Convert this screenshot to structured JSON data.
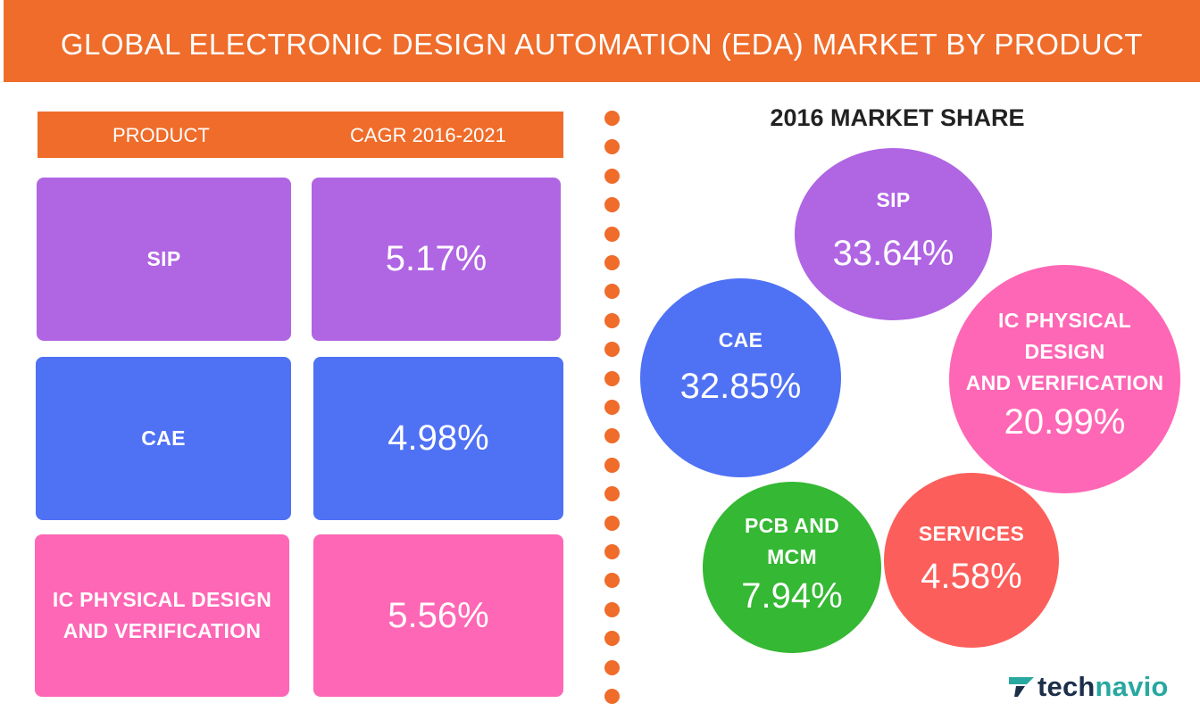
{
  "header": {
    "title": "GLOBAL ELECTRONIC DESIGN AUTOMATION (EDA) MARKET BY PRODUCT"
  },
  "table": {
    "col_product": "PRODUCT",
    "col_cagr": "CAGR 2016-2021"
  },
  "colors": {
    "orange": "#ef6c2a",
    "sip": "#b065e3",
    "cae": "#4f71f4",
    "ic": "#fe67b5",
    "pcb": "#35b833",
    "services": "#fc5f5b"
  },
  "logo": {
    "part1": "tech",
    "part2": "navio"
  },
  "chart_data": [
    {
      "type": "table",
      "title": "",
      "columns": [
        "PRODUCT",
        "CAGR 2016-2021"
      ],
      "rows": [
        {
          "product": "SIP",
          "cagr_label": "5.17%",
          "cagr": 5.17
        },
        {
          "product": "CAE",
          "cagr_label": "4.98%",
          "cagr": 4.98
        },
        {
          "product": "IC PHYSICAL DESIGN AND VERIFICATION",
          "cagr_label": "5.56%",
          "cagr": 5.56
        }
      ]
    },
    {
      "type": "pie",
      "title": "2016 MARKET SHARE",
      "slices": [
        {
          "lines": [
            "SIP"
          ],
          "label": "33.64%",
          "value": 33.64
        },
        {
          "lines": [
            "CAE"
          ],
          "label": "32.85%",
          "value": 32.85
        },
        {
          "lines": [
            "IC PHYSICAL",
            "DESIGN",
            "AND VERIFICATION"
          ],
          "label": "20.99%",
          "value": 20.99
        },
        {
          "lines": [
            "PCB AND",
            "MCM"
          ],
          "label": "7.94%",
          "value": 7.94
        },
        {
          "lines": [
            "SERVICES"
          ],
          "label": "4.58%",
          "value": 4.58
        }
      ]
    }
  ]
}
